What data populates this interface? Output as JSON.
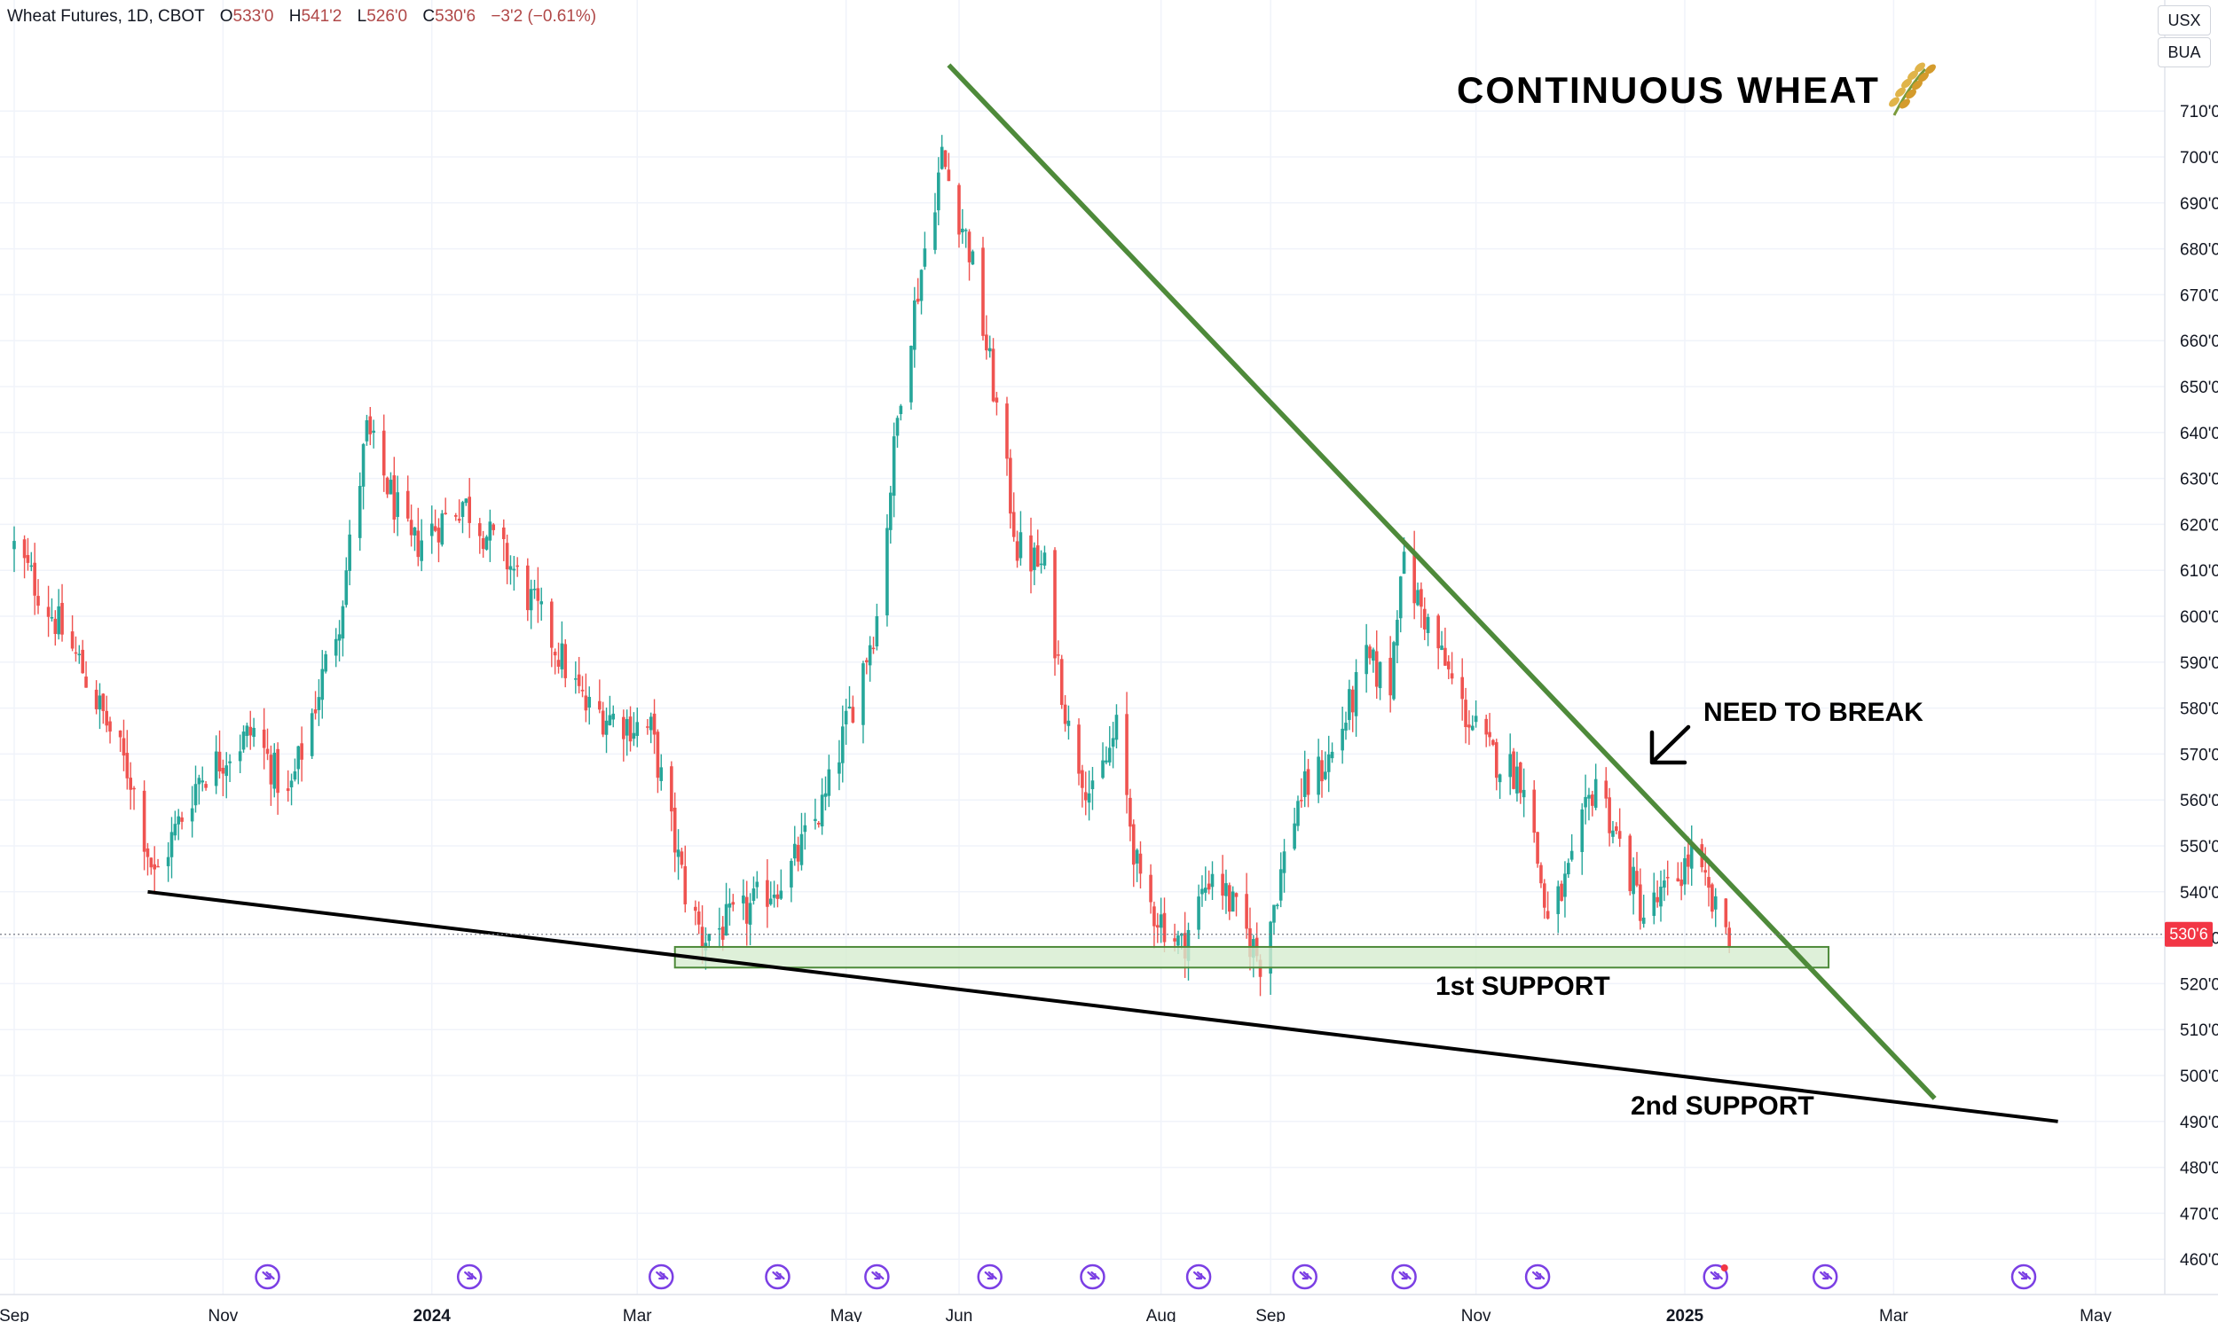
{
  "header": {
    "symbol_line": "Wheat Futures, 1D, CBOT",
    "o_label": "O",
    "o_value": "533'0",
    "h_label": "H",
    "h_value": "541'2",
    "l_label": "L",
    "l_value": "526'0",
    "c_label": "C",
    "c_value": "530'6",
    "change": "−3'2 (−0.61%)"
  },
  "units": [
    "USX",
    "BUA"
  ],
  "colors": {
    "up": "#26a69a",
    "down": "#ef5350",
    "trendline": "#4e8a3a",
    "support_line": "#000000",
    "support_zone_fill": "#d6ecd0",
    "price_tag": "#f23645",
    "event_icon": "#7b3fe4"
  },
  "chart_data": {
    "type": "candlestick",
    "title": "CONTINUOUS WHEAT",
    "title_icon": "wheat-icon",
    "ylim": [
      455,
      722
    ],
    "y_ticks": [
      "710'0",
      "700'0",
      "690'0",
      "680'0",
      "670'0",
      "660'0",
      "650'0",
      "640'0",
      "630'0",
      "620'0",
      "610'0",
      "600'0",
      "590'0",
      "580'0",
      "570'0",
      "560'0",
      "550'0",
      "540'0",
      "530'0",
      "520'0",
      "510'0",
      "500'0",
      "490'0",
      "480'0",
      "470'0",
      "460'0"
    ],
    "x_ticks": [
      {
        "label": "Sep",
        "date": "2023-09-01",
        "bold": false
      },
      {
        "label": "Nov",
        "date": "2023-11-01",
        "bold": false
      },
      {
        "label": "2024",
        "date": "2024-01-01",
        "bold": true
      },
      {
        "label": "Mar",
        "date": "2024-03-01",
        "bold": false
      },
      {
        "label": "May",
        "date": "2024-05-01",
        "bold": false
      },
      {
        "label": "Jun",
        "date": "2024-06-03",
        "bold": false
      },
      {
        "label": "Aug",
        "date": "2024-08-01",
        "bold": false
      },
      {
        "label": "Sep",
        "date": "2024-09-02",
        "bold": false
      },
      {
        "label": "Nov",
        "date": "2024-11-01",
        "bold": false
      },
      {
        "label": "2025",
        "date": "2025-01-01",
        "bold": true
      },
      {
        "label": "Mar",
        "date": "2025-03-03",
        "bold": false
      },
      {
        "label": "May",
        "date": "2025-05-01",
        "bold": false
      }
    ],
    "last_price": 530.75,
    "last_price_label": "530'6",
    "price_path": [
      [
        "2023-09-01",
        615
      ],
      [
        "2023-09-20",
        590
      ],
      [
        "2023-10-05",
        565
      ],
      [
        "2023-10-12",
        543
      ],
      [
        "2023-10-25",
        565
      ],
      [
        "2023-11-10",
        575
      ],
      [
        "2023-11-20",
        560
      ],
      [
        "2023-12-05",
        600
      ],
      [
        "2023-12-13",
        640
      ],
      [
        "2023-12-26",
        615
      ],
      [
        "2024-01-10",
        625
      ],
      [
        "2024-01-25",
        610
      ],
      [
        "2024-02-05",
        595
      ],
      [
        "2024-02-15",
        580
      ],
      [
        "2024-03-05",
        575
      ],
      [
        "2024-03-15",
        540
      ],
      [
        "2024-03-20",
        530
      ],
      [
        "2024-04-01",
        535
      ],
      [
        "2024-04-15",
        545
      ],
      [
        "2024-04-25",
        560
      ],
      [
        "2024-05-10",
        600
      ],
      [
        "2024-05-17",
        650
      ],
      [
        "2024-05-24",
        680
      ],
      [
        "2024-05-29",
        700
      ],
      [
        "2024-06-06",
        680
      ],
      [
        "2024-06-13",
        650
      ],
      [
        "2024-06-20",
        615
      ],
      [
        "2024-06-28",
        610
      ],
      [
        "2024-07-05",
        575
      ],
      [
        "2024-07-12",
        560
      ],
      [
        "2024-07-19",
        575
      ],
      [
        "2024-07-26",
        540
      ],
      [
        "2024-08-07",
        528
      ],
      [
        "2024-08-16",
        545
      ],
      [
        "2024-08-23",
        535
      ],
      [
        "2024-08-30",
        525
      ],
      [
        "2024-09-10",
        560
      ],
      [
        "2024-09-20",
        570
      ],
      [
        "2024-09-30",
        590
      ],
      [
        "2024-10-07",
        585
      ],
      [
        "2024-10-10",
        612
      ],
      [
        "2024-10-17",
        600
      ],
      [
        "2024-10-28",
        580
      ],
      [
        "2024-11-05",
        570
      ],
      [
        "2024-11-15",
        565
      ],
      [
        "2024-11-22",
        533
      ],
      [
        "2024-11-29",
        545
      ],
      [
        "2024-12-06",
        565
      ],
      [
        "2024-12-13",
        550
      ],
      [
        "2024-12-20",
        535
      ],
      [
        "2024-12-27",
        540
      ],
      [
        "2025-01-03",
        548
      ],
      [
        "2025-01-10",
        535
      ],
      [
        "2025-01-15",
        530.75
      ]
    ],
    "drawings": {
      "resistance_line": {
        "from": [
          "2024-05-31",
          720
        ],
        "to": [
          "2025-03-15",
          495
        ]
      },
      "support_line": {
        "from": [
          "2023-10-10",
          540
        ],
        "to": [
          "2025-04-20",
          490
        ]
      },
      "support_zone": {
        "from_date": "2024-03-12",
        "to_date": "2025-02-12",
        "low": 523.5,
        "high": 528
      }
    },
    "annotations": [
      {
        "text": "NEED TO BREAK",
        "arrow": "arrow-down-left-icon"
      },
      {
        "text": "1st SUPPORT"
      },
      {
        "text": "2nd SUPPORT"
      }
    ],
    "event_markers": [
      "2023-11-14",
      "2024-01-12",
      "2024-03-08",
      "2024-04-11",
      "2024-05-10",
      "2024-06-12",
      "2024-07-12",
      "2024-08-12",
      "2024-09-12",
      "2024-10-11",
      "2024-11-19",
      "2025-01-10",
      "2025-02-11",
      "2025-04-10"
    ]
  }
}
